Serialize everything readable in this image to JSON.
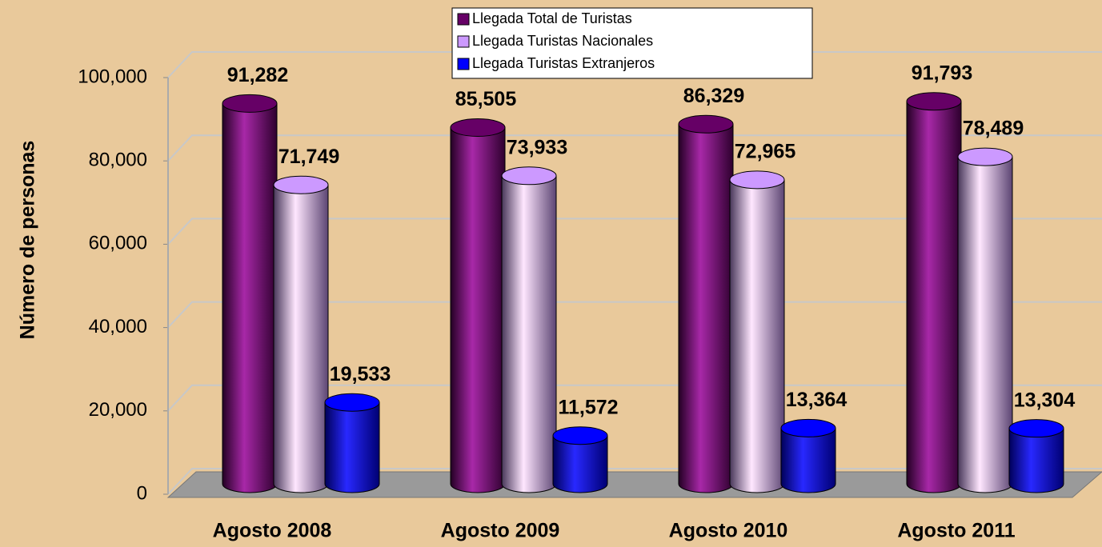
{
  "chart_data": {
    "type": "bar",
    "y_axis_label": "Número de personas",
    "categories": [
      "Agosto 2008",
      "Agosto 2009",
      "Agosto 2010",
      "Agosto 2011"
    ],
    "series": [
      {
        "name": "Llegada Total de Turistas",
        "color": "#660066",
        "values": [
          91282,
          85505,
          86329,
          91793
        ],
        "value_labels": [
          "91,282",
          "85,505",
          "86,329",
          "91,793"
        ]
      },
      {
        "name": "Llegada Turistas Nacionales",
        "color": "#cc99ff",
        "values": [
          71749,
          73933,
          72965,
          78489
        ],
        "value_labels": [
          "71,749",
          "73,933",
          "72,965",
          "78,489"
        ]
      },
      {
        "name": "Llegada Turistas Extranjeros",
        "color": "#0000ff",
        "values": [
          19533,
          11572,
          13364,
          13304
        ],
        "value_labels": [
          "19,533",
          "11,572",
          "13,364",
          "13,304"
        ]
      }
    ],
    "ylim": [
      0,
      100000
    ],
    "yticks": [
      0,
      {
        "value": 20000,
        "label": "20,000"
      },
      {
        "value": 40000,
        "label": "40,000"
      },
      {
        "value": 60000,
        "label": "60,000"
      },
      {
        "value": 80000,
        "label": "80,000"
      },
      {
        "value": 100000,
        "label": "100,000"
      }
    ],
    "grid": true,
    "legend_position": "top"
  }
}
